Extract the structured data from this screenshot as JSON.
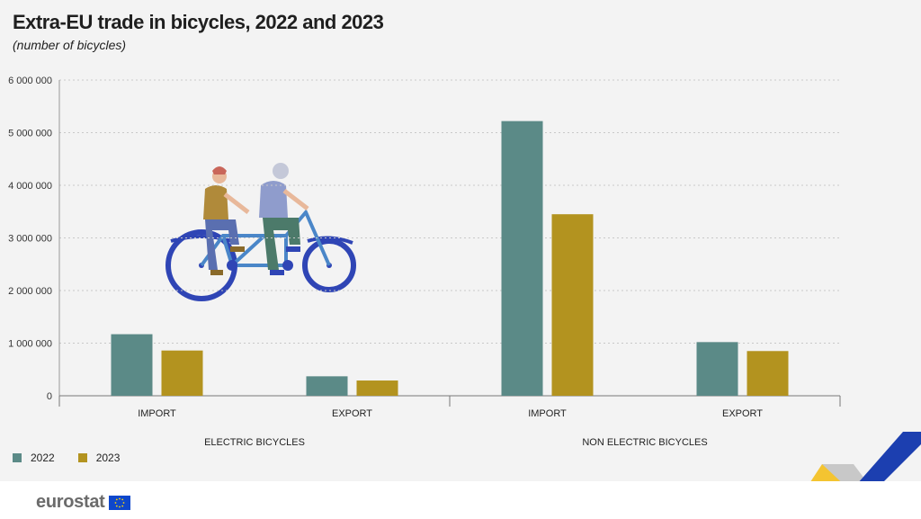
{
  "title": "Extra-EU trade in bicycles, 2022 and 2023",
  "subtitle": "(number of bicycles)",
  "colors": {
    "s2022": "#5b8a87",
    "s2023": "#b3931f",
    "bike_blue": "#2f45b5"
  },
  "legend": [
    "2022",
    "2023"
  ],
  "logo_text": "eurostat",
  "illustration": "tandem-bicycle-riders",
  "chart_data": {
    "type": "bar",
    "groups": [
      {
        "label": "ELECTRIC BICYCLES",
        "categories": [
          "IMPORT",
          "EXPORT"
        ]
      },
      {
        "label": "NON ELECTRIC BICYCLES",
        "categories": [
          "IMPORT",
          "EXPORT"
        ]
      }
    ],
    "series": [
      {
        "name": "2022",
        "values": [
          1170000,
          370000,
          5220000,
          1020000
        ]
      },
      {
        "name": "2023",
        "values": [
          860000,
          290000,
          3450000,
          850000
        ]
      }
    ],
    "yticks": [
      "0",
      "1 000 000",
      "2 000 000",
      "3 000 000",
      "4 000 000",
      "5 000 000",
      "6 000 000"
    ],
    "ylim": [
      0,
      6000000
    ],
    "grid": true,
    "legend_position": "bottom-left"
  }
}
